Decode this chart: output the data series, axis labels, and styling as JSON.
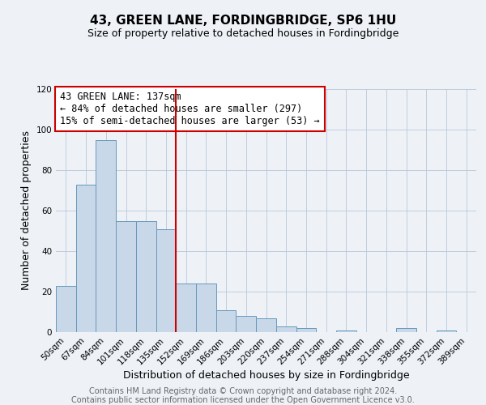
{
  "title": "43, GREEN LANE, FORDINGBRIDGE, SP6 1HU",
  "subtitle": "Size of property relative to detached houses in Fordingbridge",
  "xlabel": "Distribution of detached houses by size in Fordingbridge",
  "ylabel": "Number of detached properties",
  "bar_labels": [
    "50sqm",
    "67sqm",
    "84sqm",
    "101sqm",
    "118sqm",
    "135sqm",
    "152sqm",
    "169sqm",
    "186sqm",
    "203sqm",
    "220sqm",
    "237sqm",
    "254sqm",
    "271sqm",
    "288sqm",
    "304sqm",
    "321sqm",
    "338sqm",
    "355sqm",
    "372sqm",
    "389sqm"
  ],
  "bar_values": [
    23,
    73,
    95,
    55,
    55,
    51,
    24,
    24,
    11,
    8,
    7,
    3,
    2,
    0,
    1,
    0,
    0,
    2,
    0,
    1,
    0
  ],
  "bar_color": "#c8d8e8",
  "bar_edge_color": "#6699bb",
  "vline_x_idx": 5,
  "vline_color": "#cc0000",
  "annotation_text": "43 GREEN LANE: 137sqm\n← 84% of detached houses are smaller (297)\n15% of semi-detached houses are larger (53) →",
  "annotation_box_color": "#ffffff",
  "annotation_box_edge_color": "#cc0000",
  "ylim": [
    0,
    120
  ],
  "yticks": [
    0,
    20,
    40,
    60,
    80,
    100,
    120
  ],
  "bg_color": "#eef2f7",
  "footer_line1": "Contains HM Land Registry data © Crown copyright and database right 2024.",
  "footer_line2": "Contains public sector information licensed under the Open Government Licence v3.0.",
  "title_fontsize": 11,
  "subtitle_fontsize": 9,
  "axis_label_fontsize": 9,
  "tick_fontsize": 7.5,
  "footer_fontsize": 7,
  "annotation_fontsize": 8.5
}
